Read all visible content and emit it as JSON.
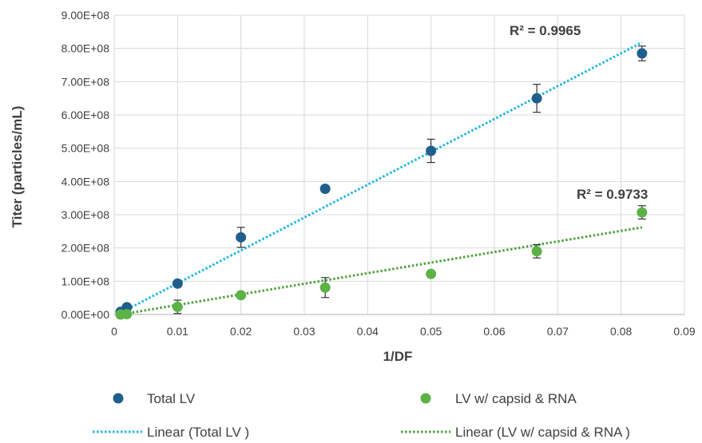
{
  "chart_data": {
    "type": "scatter",
    "xlabel": "1/DF",
    "ylabel": "Titer (particles/mL)",
    "xlim": [
      0,
      0.09
    ],
    "ylim": [
      0,
      900000000
    ],
    "x_ticks": [
      "0",
      "0.01",
      "0.02",
      "0.03",
      "0.04",
      "0.05",
      "0.06",
      "0.07",
      "0.08",
      "0.09"
    ],
    "y_ticks": [
      "0.00E+00",
      "1.00E+08",
      "2.00E+08",
      "3.00E+08",
      "4.00E+08",
      "5.00E+08",
      "6.00E+08",
      "7.00E+08",
      "8.00E+08",
      "9.00E+08"
    ],
    "grid": "vertical and horizontal",
    "legend_position": "bottom",
    "series": [
      {
        "name": "Total LV",
        "color": "#1f5f8b",
        "points": [
          {
            "x": 0.001,
            "y": 8000000,
            "err": 0
          },
          {
            "x": 0.002,
            "y": 22000000,
            "err": 0
          },
          {
            "x": 0.01,
            "y": 93000000,
            "err": 0
          },
          {
            "x": 0.02,
            "y": 232000000,
            "err": 30000000
          },
          {
            "x": 0.0333,
            "y": 378000000,
            "err": 0
          },
          {
            "x": 0.05,
            "y": 492000000,
            "err": 35000000
          },
          {
            "x": 0.0667,
            "y": 650000000,
            "err": 42000000
          },
          {
            "x": 0.0833,
            "y": 785000000,
            "err": 22000000
          }
        ],
        "trendline": {
          "name": "Linear (Total LV )",
          "color": "#1fb4e6",
          "x_range": [
            0.001,
            0.0833
          ],
          "y_range": [
            5000000,
            818000000
          ],
          "r2_label": "R² = 0.9965"
        }
      },
      {
        "name": "LV w/ capsid & RNA",
        "color": "#5cb245",
        "points": [
          {
            "x": 0.001,
            "y": 0,
            "err": 0
          },
          {
            "x": 0.002,
            "y": 1000000,
            "err": 0
          },
          {
            "x": 0.01,
            "y": 23000000,
            "err": 20000000
          },
          {
            "x": 0.02,
            "y": 58000000,
            "err": 0
          },
          {
            "x": 0.0333,
            "y": 81000000,
            "err": 30000000
          },
          {
            "x": 0.05,
            "y": 122000000,
            "err": 0
          },
          {
            "x": 0.0667,
            "y": 190000000,
            "err": 20000000
          },
          {
            "x": 0.0833,
            "y": 307000000,
            "err": 20000000
          }
        ],
        "trendline": {
          "name": "Linear (LV w/ capsid & RNA )",
          "color": "#4ca33b",
          "x_range": [
            0.001,
            0.0833
          ],
          "y_range": [
            0,
            262000000
          ],
          "r2_label": "R² = 0.9733"
        }
      }
    ]
  }
}
